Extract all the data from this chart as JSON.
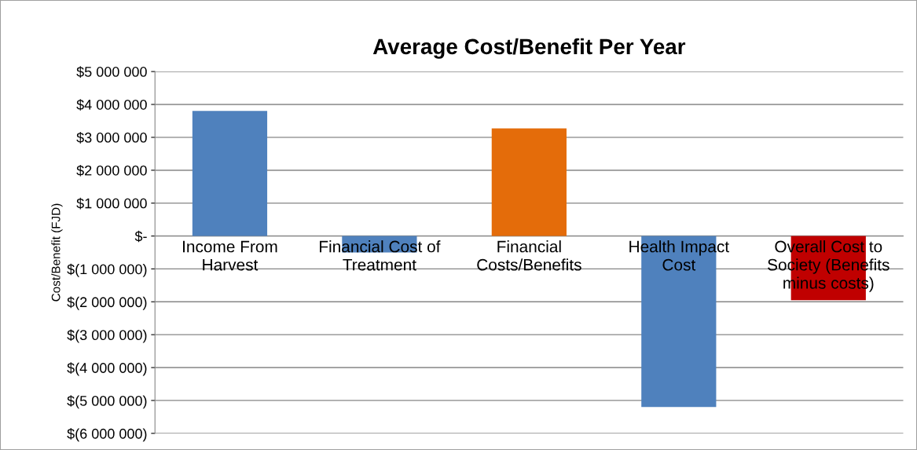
{
  "chart_data": {
    "type": "bar",
    "title": "Average Cost/Benefit Per Year",
    "ylabel": "Cost/Benefit (FJD)",
    "categories": [
      "Income From\nHarvest",
      "Financial Cost of\nTreatment",
      "Financial\nCosts/Benefits",
      "Health Impact\nCost",
      "Overall Cost to\nSociety (Benefits\nminus costs)"
    ],
    "values": [
      3800000,
      -500000,
      3270000,
      -5200000,
      -1950000
    ],
    "colors": [
      "#4f81bd",
      "#4f81bd",
      "#e46c0a",
      "#4f81bd",
      "#c00000"
    ],
    "ylim": [
      -6000000,
      5000000
    ],
    "yticks": [
      {
        "value": 5000000,
        "label": "$5 000 000"
      },
      {
        "value": 4000000,
        "label": "$4 000 000"
      },
      {
        "value": 3000000,
        "label": "$3 000 000"
      },
      {
        "value": 2000000,
        "label": "$2 000 000"
      },
      {
        "value": 1000000,
        "label": "$1 000 000"
      },
      {
        "value": 0,
        "label": "$-"
      },
      {
        "value": -1000000,
        "label": "$(1 000 000)"
      },
      {
        "value": -2000000,
        "label": "$(2 000 000)"
      },
      {
        "value": -3000000,
        "label": "$(3 000 000)"
      },
      {
        "value": -4000000,
        "label": "$(4 000 000)"
      },
      {
        "value": -5000000,
        "label": "$(5 000 000)"
      },
      {
        "value": -6000000,
        "label": "$(6 000 000)"
      }
    ],
    "grid": "y",
    "legend": false
  }
}
